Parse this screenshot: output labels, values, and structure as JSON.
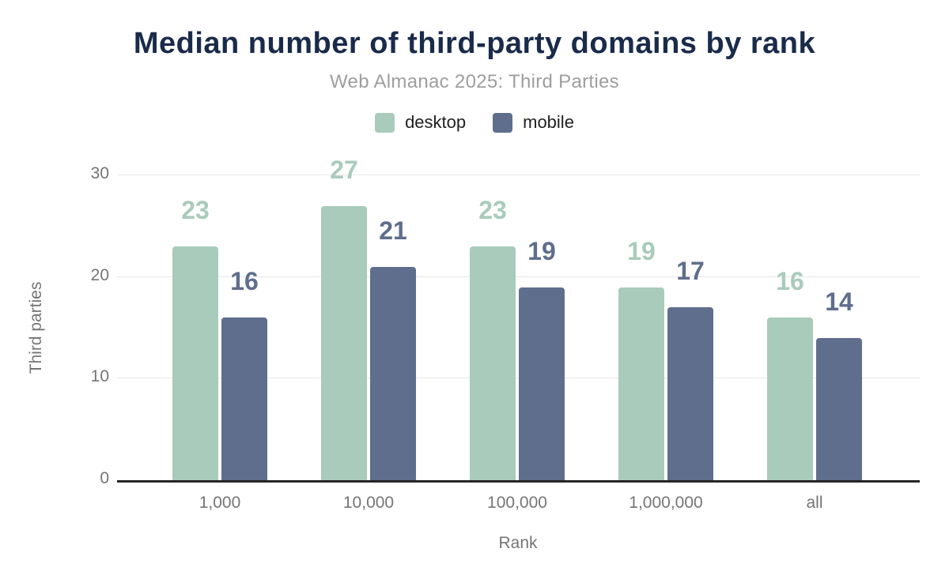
{
  "chart_data": {
    "type": "bar",
    "title": "Median number of third-party domains by rank",
    "subtitle": "Web Almanac 2025: Third Parties",
    "categories": [
      "1,000",
      "10,000",
      "100,000",
      "1,000,000",
      "all"
    ],
    "series": [
      {
        "name": "desktop",
        "color": "#a9cbbc",
        "values": [
          23,
          27,
          23,
          19,
          16
        ]
      },
      {
        "name": "mobile",
        "color": "#5f6e8c",
        "values": [
          16,
          21,
          19,
          17,
          14
        ]
      }
    ],
    "xlabel": "Rank",
    "ylabel": "Third parties",
    "ylim": [
      0,
      30
    ],
    "yticks": [
      0,
      10,
      20,
      30
    ],
    "grid": true,
    "legend_position": "top",
    "data_labels": true
  },
  "colors": {
    "background": "#ffffff",
    "title": "#1a2b4a",
    "subtitle": "#9e9e9e",
    "axis_text": "#757575",
    "legend_text": "#212121",
    "gridline": "#e7e7e7",
    "axis_line": "#262626",
    "desktop": "#a9cbbc",
    "mobile": "#5f6e8c"
  }
}
